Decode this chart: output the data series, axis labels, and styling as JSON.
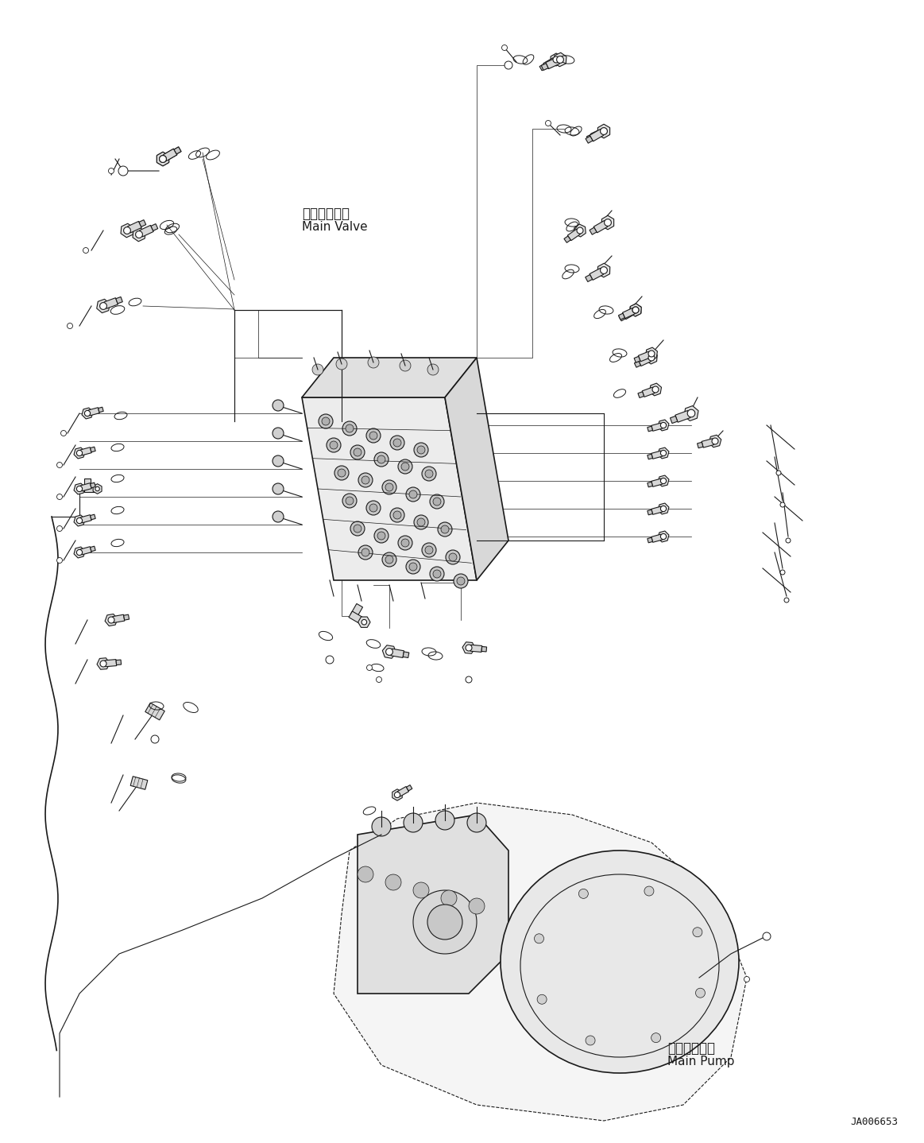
{
  "background_color": "#ffffff",
  "line_color": "#1a1a1a",
  "text_color": "#1a1a1a",
  "fig_width": 11.63,
  "fig_height": 14.38,
  "dpi": 100,
  "label_ja_main_valve": "メインバルブ",
  "label_en_main_valve": "Main Valve",
  "label_ja_main_pump": "メインポンプ",
  "label_en_main_pump": "Main Pump",
  "part_number": "JA006653"
}
